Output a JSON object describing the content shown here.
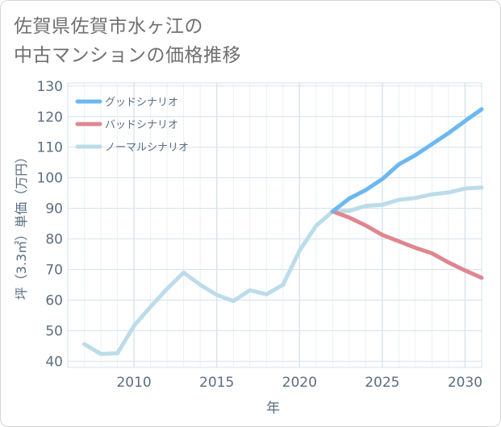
{
  "title": {
    "line1": "佐賀県佐賀市水ヶ江の",
    "line2": "中古マンションの価格推移"
  },
  "colors": {
    "good": "#6cb8f0",
    "bad": "#de8790",
    "normal": "#bcdcea",
    "grid": "#d6e3ec",
    "axis_text": "#5a6e80"
  },
  "chart_data": {
    "type": "line",
    "xlabel": "年",
    "ylabel": "坪（3.3㎡）単価（万円）",
    "xlim": [
      2006,
      2031
    ],
    "ylim": [
      38,
      131
    ],
    "x_ticks": [
      2010,
      2015,
      2020,
      2025,
      2030
    ],
    "y_ticks": [
      40,
      50,
      60,
      70,
      80,
      90,
      100,
      110,
      120,
      130
    ],
    "legend_position": "top-left",
    "series": [
      {
        "name": "グッドシナリオ",
        "key": "good",
        "x": [
          2022,
          2023,
          2024,
          2025,
          2026,
          2027,
          2028,
          2029,
          2030,
          2031
        ],
        "values": [
          89,
          93.2,
          96,
          99.6,
          104.4,
          107.4,
          111,
          114.6,
          118.6,
          122.4
        ]
      },
      {
        "name": "バッドシナリオ",
        "key": "bad",
        "x": [
          2022,
          2023,
          2024,
          2025,
          2026,
          2027,
          2028,
          2029,
          2030,
          2031
        ],
        "values": [
          89,
          87,
          84.4,
          81.3,
          79.2,
          77.1,
          75.3,
          72.3,
          69.7,
          67.3
        ]
      },
      {
        "name": "ノーマルシナリオ",
        "key": "normal",
        "x": [
          2007,
          2008,
          2009,
          2010,
          2011,
          2012,
          2013,
          2014,
          2015,
          2016,
          2017,
          2018,
          2019,
          2020,
          2021,
          2022,
          2023,
          2024,
          2025,
          2026,
          2027,
          2028,
          2029,
          2030,
          2031
        ],
        "values": [
          45.6,
          42.4,
          42.6,
          51.6,
          57.8,
          63.7,
          69,
          65,
          61.7,
          59.7,
          63.2,
          61.9,
          65,
          76.2,
          84.3,
          89,
          89.2,
          90.8,
          91.2,
          92.8,
          93.4,
          94.6,
          95.2,
          96.5,
          96.8
        ]
      }
    ]
  }
}
